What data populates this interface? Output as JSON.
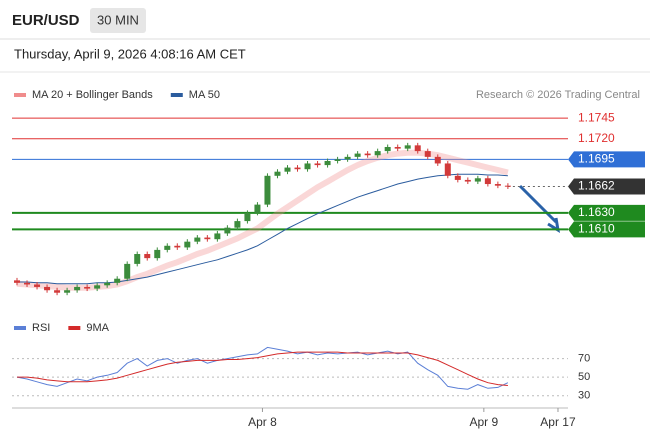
{
  "header": {
    "symbol": "EUR/USD",
    "timeframe": "30 MIN",
    "datetime": "Thursday, April 9, 2026 4:08:16 AM CET",
    "credit": "Research © 2026 Trading Central"
  },
  "chart_data": [
    {
      "type": "candlestick",
      "ylim": [
        1.1512,
        1.1761
      ],
      "xlim": [
        -0.5,
        55
      ],
      "up_color": "#3c8c3c",
      "down_color": "#d23a3a",
      "candles": {
        "open": [
          1.1548,
          1.1545,
          1.1543,
          1.154,
          1.1536,
          1.1533,
          1.1536,
          1.154,
          1.1538,
          1.1542,
          1.1545,
          1.155,
          1.1568,
          1.158,
          1.1575,
          1.1585,
          1.159,
          1.1588,
          1.1595,
          1.16,
          1.1598,
          1.1605,
          1.1612,
          1.162,
          1.163,
          1.164,
          1.1675,
          1.168,
          1.1685,
          1.1683,
          1.169,
          1.1688,
          1.1693,
          1.1695,
          1.1698,
          1.1702,
          1.17,
          1.1705,
          1.171,
          1.1708,
          1.1712,
          1.1705,
          1.1698,
          1.169,
          1.1675,
          1.167,
          1.1668,
          1.1672,
          1.1665,
          1.1663
        ],
        "high": [
          1.1551,
          1.1548,
          1.1546,
          1.1543,
          1.1539,
          1.1539,
          1.1543,
          1.1543,
          1.1545,
          1.1548,
          1.1553,
          1.1571,
          1.1583,
          1.1583,
          1.1588,
          1.1593,
          1.1593,
          1.1598,
          1.1603,
          1.1603,
          1.1608,
          1.1615,
          1.1623,
          1.1633,
          1.1643,
          1.1678,
          1.1683,
          1.1688,
          1.1688,
          1.1693,
          1.1693,
          1.1696,
          1.1698,
          1.1701,
          1.1705,
          1.1705,
          1.1708,
          1.1713,
          1.1713,
          1.1715,
          1.1715,
          1.1708,
          1.1701,
          1.1693,
          1.1678,
          1.1673,
          1.1675,
          1.1675,
          1.1668,
          1.1666
        ],
        "low": [
          1.1542,
          1.154,
          1.1537,
          1.1533,
          1.153,
          1.153,
          1.1533,
          1.1535,
          1.1535,
          1.1539,
          1.1542,
          1.1547,
          1.1565,
          1.1572,
          1.1572,
          1.1582,
          1.1585,
          1.1585,
          1.1592,
          1.1595,
          1.1595,
          1.1602,
          1.1609,
          1.1617,
          1.1627,
          1.1637,
          1.1672,
          1.1677,
          1.168,
          1.168,
          1.1685,
          1.1685,
          1.169,
          1.1692,
          1.1695,
          1.1697,
          1.1697,
          1.1702,
          1.1705,
          1.1705,
          1.1702,
          1.1695,
          1.1687,
          1.1672,
          1.1667,
          1.1665,
          1.1665,
          1.1662,
          1.166,
          1.1659
        ],
        "close": [
          1.1545,
          1.1543,
          1.154,
          1.1536,
          1.1533,
          1.1536,
          1.154,
          1.1538,
          1.1542,
          1.1545,
          1.155,
          1.1568,
          1.158,
          1.1575,
          1.1585,
          1.159,
          1.1588,
          1.1595,
          1.16,
          1.1598,
          1.1605,
          1.1612,
          1.162,
          1.163,
          1.164,
          1.1675,
          1.168,
          1.1685,
          1.1683,
          1.169,
          1.1688,
          1.1693,
          1.1695,
          1.1698,
          1.1702,
          1.17,
          1.1705,
          1.171,
          1.1708,
          1.1712,
          1.1705,
          1.1698,
          1.169,
          1.1675,
          1.167,
          1.1668,
          1.1672,
          1.1665,
          1.1663,
          1.1662
        ]
      },
      "series": [
        {
          "name": "MA 20 + Bollinger Bands",
          "color": "#f08c8c",
          "values": [
            1.1544,
            1.1543,
            1.1542,
            1.1541,
            1.154,
            1.1539,
            1.1539,
            1.1539,
            1.154,
            1.1541,
            1.1543,
            1.1547,
            1.1552,
            1.1556,
            1.1561,
            1.1566,
            1.157,
            1.1575,
            1.158,
            1.1584,
            1.1589,
            1.1594,
            1.1599,
            1.1605,
            1.1611,
            1.162,
            1.1629,
            1.1637,
            1.1645,
            1.1653,
            1.1661,
            1.1668,
            1.1675,
            1.1682,
            1.1688,
            1.1693,
            1.1697,
            1.17,
            1.1702,
            1.1703,
            1.1703,
            1.1702,
            1.17,
            1.1697,
            1.1694,
            1.1691,
            1.1688,
            1.1685,
            1.1682,
            1.1679
          ]
        },
        {
          "name": "MA 50",
          "color": "#2b5c9e",
          "values": [
            1.1546,
            1.1546,
            1.1545,
            1.1545,
            1.1544,
            1.1544,
            1.1544,
            1.1544,
            1.1545,
            1.1545,
            1.1546,
            1.1548,
            1.155,
            1.1552,
            1.1555,
            1.1558,
            1.1561,
            1.1564,
            1.1567,
            1.157,
            1.1573,
            1.1577,
            1.1581,
            1.1585,
            1.159,
            1.1597,
            1.1604,
            1.1611,
            1.1617,
            1.1623,
            1.1629,
            1.1634,
            1.1639,
            1.1644,
            1.1649,
            1.1653,
            1.1657,
            1.1661,
            1.1665,
            1.1668,
            1.1671,
            1.1673,
            1.1675,
            1.1676,
            1.1677,
            1.1677,
            1.1677,
            1.1676,
            1.1676,
            1.1675
          ]
        }
      ],
      "levels": [
        {
          "value": 1.1745,
          "label": "1.1745",
          "color": "#e03030",
          "style": "plain"
        },
        {
          "value": 1.172,
          "label": "1.1720",
          "color": "#e03030",
          "style": "plain"
        },
        {
          "value": 1.1695,
          "label": "1.1695",
          "color": "#2f6fd6",
          "style": "box"
        },
        {
          "value": 1.1662,
          "label": "1.1662",
          "color": "#333333",
          "style": "current"
        },
        {
          "value": 1.163,
          "label": "1.1630",
          "color": "#1f8a1f",
          "style": "box"
        },
        {
          "value": 1.161,
          "label": "1.1610",
          "color": "#1f8a1f",
          "style": "box"
        }
      ]
    },
    {
      "type": "rsi",
      "ylim": [
        20,
        90
      ],
      "yticks": [
        70,
        50,
        30
      ],
      "xlim": [
        -0.5,
        55
      ],
      "xticks": [
        {
          "value": 24.5,
          "label": "Apr 8"
        },
        {
          "value": 46.6,
          "label": "Apr 9"
        },
        {
          "value": 54,
          "label": "Apr 17"
        }
      ],
      "series": [
        {
          "name": "RSI",
          "color": "#5b7fd6",
          "values": [
            50,
            48,
            45,
            42,
            40,
            44,
            48,
            46,
            50,
            52,
            55,
            65,
            70,
            62,
            68,
            70,
            65,
            68,
            70,
            65,
            68,
            70,
            72,
            74,
            75,
            82,
            80,
            78,
            75,
            77,
            74,
            76,
            75,
            76,
            77,
            74,
            76,
            78,
            75,
            77,
            65,
            58,
            52,
            40,
            38,
            37,
            42,
            38,
            39,
            44
          ]
        },
        {
          "name": "9MA",
          "color": "#d42a2a",
          "values": [
            50,
            50,
            49,
            47,
            46,
            45,
            45,
            45,
            46,
            47,
            49,
            52,
            55,
            58,
            61,
            64,
            66,
            67,
            68,
            68,
            68,
            69,
            69,
            70,
            71,
            73,
            75,
            76,
            77,
            77,
            77,
            77,
            77,
            76,
            76,
            76,
            76,
            76,
            76,
            76,
            74,
            71,
            68,
            63,
            58,
            53,
            48,
            44,
            42,
            41
          ]
        }
      ]
    }
  ]
}
